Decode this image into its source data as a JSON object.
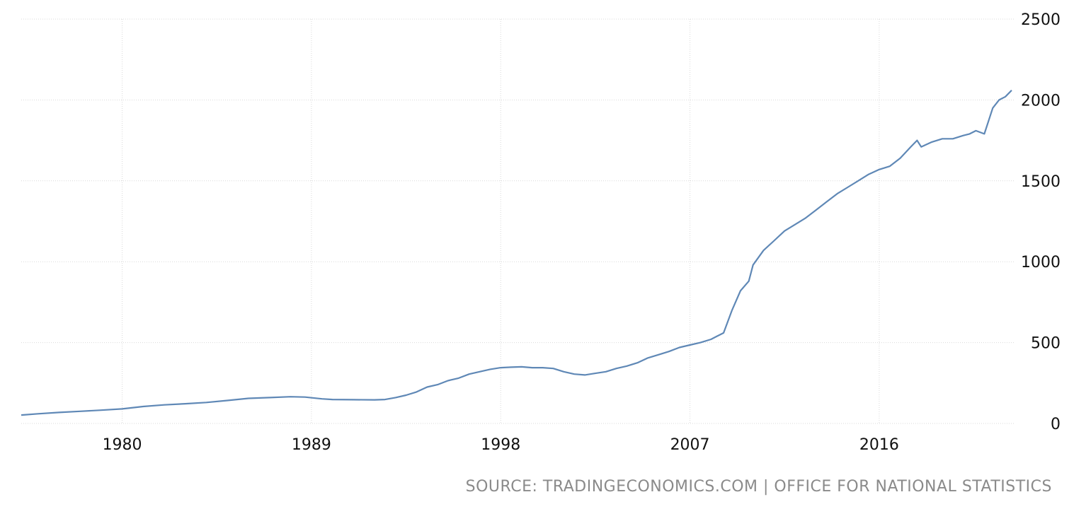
{
  "chart_data": {
    "type": "line",
    "title": "",
    "xlabel": "",
    "ylabel": "",
    "xlim": [
      1975.2,
      2022.4
    ],
    "ylim": [
      0,
      2500
    ],
    "x_ticks": [
      1980,
      1989,
      1998,
      2007,
      2016
    ],
    "x_tick_labels": [
      "1980",
      "1989",
      "1998",
      "2007",
      "2016"
    ],
    "y_ticks": [
      0,
      500,
      1000,
      1500,
      2000,
      2500
    ],
    "y_tick_labels": [
      "0",
      "500",
      "1000",
      "1500",
      "2000",
      "2500"
    ],
    "y_axis_position": "right",
    "grid": true,
    "legend": "none",
    "series": [
      {
        "color": "#5f88b6",
        "x": [
          1975.2,
          1976,
          1977,
          1978,
          1979,
          1980,
          1981,
          1982,
          1983,
          1984,
          1985,
          1986,
          1987,
          1988,
          1988.7,
          1989.5,
          1990,
          1991,
          1992,
          1992.5,
          1993,
          1993.5,
          1994,
          1994.5,
          1995,
          1995.5,
          1996,
          1996.5,
          1997,
          1997.5,
          1998,
          1998.5,
          1999,
          1999.5,
          2000,
          2000.5,
          2001,
          2001.5,
          2002,
          2002.5,
          2003,
          2003.5,
          2004,
          2004.5,
          2005,
          2005.5,
          2006,
          2006.5,
          2007,
          2007.5,
          2008,
          2008.3,
          2008.6,
          2009,
          2009.4,
          2009.8,
          2010,
          2010.5,
          2011,
          2011.5,
          2012,
          2012.5,
          2013,
          2013.5,
          2014,
          2014.5,
          2015,
          2015.5,
          2016,
          2016.5,
          2017,
          2017.5,
          2017.8,
          2018,
          2018.5,
          2019,
          2019.5,
          2020,
          2020.3,
          2020.6,
          2021,
          2021.4,
          2021.7,
          2022,
          2022.3
        ],
        "y": [
          52,
          60,
          68,
          75,
          82,
          90,
          105,
          115,
          122,
          130,
          142,
          155,
          160,
          165,
          163,
          152,
          148,
          147,
          146,
          148,
          160,
          175,
          195,
          225,
          240,
          265,
          280,
          305,
          320,
          335,
          345,
          348,
          350,
          345,
          345,
          340,
          320,
          305,
          300,
          310,
          320,
          340,
          355,
          375,
          405,
          425,
          445,
          470,
          485,
          500,
          520,
          540,
          560,
          700,
          820,
          880,
          980,
          1070,
          1130,
          1190,
          1230,
          1270,
          1320,
          1370,
          1420,
          1460,
          1500,
          1540,
          1570,
          1590,
          1640,
          1710,
          1750,
          1710,
          1740,
          1760,
          1760,
          1780,
          1790,
          1810,
          1790,
          1950,
          2000,
          2020,
          2060
        ]
      }
    ],
    "source": "SOURCE: TRADINGECONOMICS.COM | OFFICE FOR NATIONAL STATISTICS"
  }
}
